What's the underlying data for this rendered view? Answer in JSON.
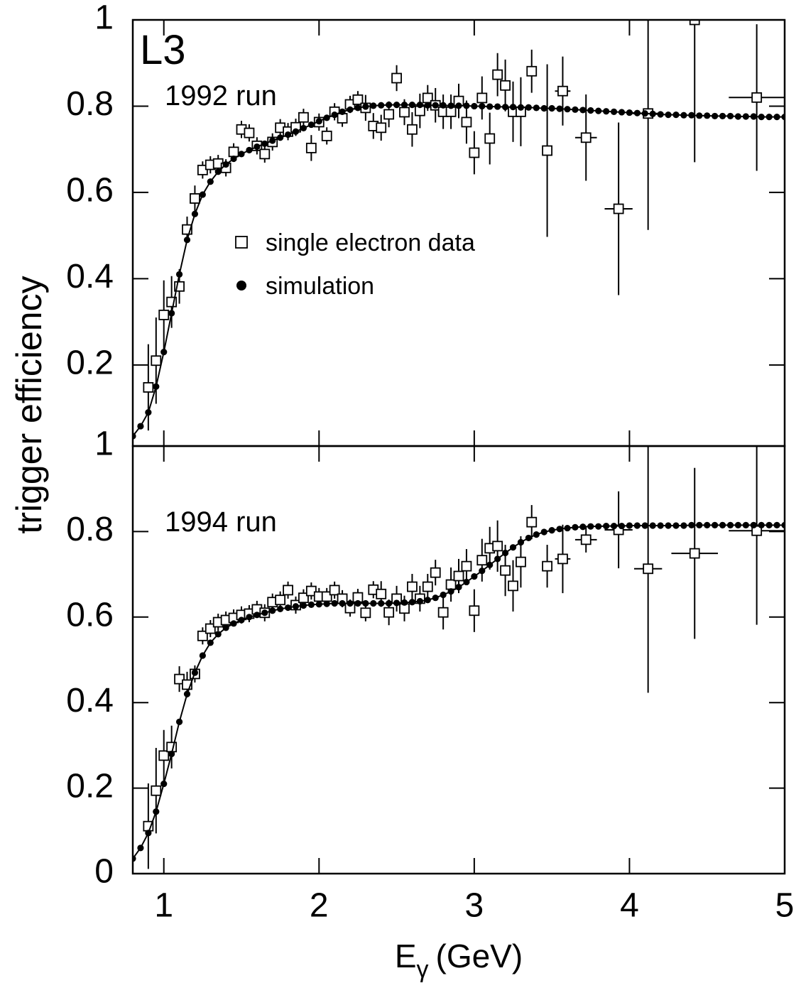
{
  "annotation": "L3",
  "ylabel": "trigger efficiency",
  "xlabel": {
    "symbol": "E",
    "subscript": "γ",
    "unit": "(GeV)"
  },
  "chart_data": [
    {
      "type": "scatter",
      "annotation": "1992 run",
      "xlim": [
        0.8,
        5
      ],
      "ylim": [
        0.012,
        1
      ],
      "xticks": [
        1,
        2,
        3,
        4,
        5
      ],
      "yticks": [
        0.2,
        0.4,
        0.6,
        0.8,
        1
      ],
      "series": [
        {
          "name": "single electron data",
          "marker": "square",
          "color": "#000000",
          "x": [
            0.9,
            0.95,
            1.0,
            1.05,
            1.1,
            1.15,
            1.2,
            1.25,
            1.3,
            1.35,
            1.4,
            1.45,
            1.5,
            1.55,
            1.6,
            1.65,
            1.7,
            1.75,
            1.8,
            1.85,
            1.9,
            1.95,
            2.0,
            2.05,
            2.1,
            2.15,
            2.2,
            2.25,
            2.3,
            2.35,
            2.4,
            2.45,
            2.5,
            2.55,
            2.6,
            2.65,
            2.7,
            2.75,
            2.8,
            2.85,
            2.9,
            2.95,
            3.0,
            3.05,
            3.1,
            3.15,
            3.2,
            3.25,
            3.3,
            3.37,
            3.47,
            3.57,
            3.72,
            3.93,
            4.12,
            4.42,
            4.82
          ],
          "values": [
            0.148,
            0.21,
            0.316,
            0.346,
            0.382,
            0.514,
            0.586,
            0.652,
            0.664,
            0.667,
            0.657,
            0.694,
            0.746,
            0.738,
            0.708,
            0.689,
            0.717,
            0.75,
            0.741,
            0.751,
            0.774,
            0.703,
            0.763,
            0.731,
            0.787,
            0.772,
            0.804,
            0.815,
            0.796,
            0.754,
            0.75,
            0.781,
            0.865,
            0.786,
            0.746,
            0.789,
            0.819,
            0.802,
            0.787,
            0.787,
            0.812,
            0.763,
            0.692,
            0.819,
            0.725,
            0.873,
            0.848,
            0.787,
            0.787,
            0.881,
            0.697,
            0.835,
            0.727,
            0.562,
            0.783,
            1.0,
            0.82
          ],
          "errors": [
            0.1,
            0.1,
            0.08,
            0.06,
            0.04,
            0.03,
            0.03,
            0.02,
            0.02,
            0.02,
            0.02,
            0.02,
            0.02,
            0.02,
            0.02,
            0.02,
            0.02,
            0.02,
            0.02,
            0.02,
            0.02,
            0.03,
            0.02,
            0.02,
            0.02,
            0.02,
            0.02,
            0.02,
            0.03,
            0.03,
            0.03,
            0.03,
            0.03,
            0.03,
            0.04,
            0.04,
            0.03,
            0.04,
            0.04,
            0.04,
            0.04,
            0.05,
            0.05,
            0.05,
            0.06,
            0.05,
            0.06,
            0.07,
            0.08,
            0.05,
            0.2,
            0.08,
            0.1,
            0.2,
            0.27,
            0.33,
            0.17
          ],
          "xerr": [
            0.025,
            0.025,
            0.025,
            0.025,
            0.025,
            0.025,
            0.025,
            0.025,
            0.025,
            0.025,
            0.025,
            0.025,
            0.025,
            0.025,
            0.025,
            0.025,
            0.025,
            0.025,
            0.025,
            0.025,
            0.025,
            0.025,
            0.025,
            0.025,
            0.025,
            0.025,
            0.025,
            0.025,
            0.025,
            0.025,
            0.025,
            0.025,
            0.025,
            0.025,
            0.025,
            0.025,
            0.025,
            0.025,
            0.025,
            0.025,
            0.025,
            0.025,
            0.025,
            0.025,
            0.025,
            0.025,
            0.025,
            0.025,
            0.025,
            0.025,
            0.025,
            0.05,
            0.07,
            0.09,
            0.1,
            0.1,
            0.18
          ]
        },
        {
          "name": "simulation",
          "marker": "dot",
          "line": true,
          "color": "#000000",
          "x": [
            0.8,
            0.85,
            0.9,
            0.95,
            1.0,
            1.05,
            1.1,
            1.15,
            1.2,
            1.25,
            1.3,
            1.35,
            1.4,
            1.45,
            1.5,
            1.55,
            1.6,
            1.65,
            1.7,
            1.75,
            1.8,
            1.85,
            1.9,
            1.95,
            2.0,
            2.05,
            2.1,
            2.15,
            2.2,
            2.25,
            2.3,
            2.35,
            2.4,
            2.45,
            2.5,
            2.55,
            2.6,
            2.65,
            2.7,
            2.75,
            2.8,
            2.85,
            2.9,
            2.95,
            3.0,
            3.05,
            3.1,
            3.15,
            3.2,
            3.25,
            3.3,
            3.35,
            3.4,
            3.45,
            3.5,
            3.55,
            3.6,
            3.65,
            3.7,
            3.75,
            3.8,
            3.85,
            3.9,
            3.95,
            4.0,
            4.05,
            4.1,
            4.15,
            4.2,
            4.25,
            4.3,
            4.35,
            4.4,
            4.45,
            4.5,
            4.55,
            4.6,
            4.65,
            4.7,
            4.75,
            4.8,
            4.85,
            4.9,
            4.95,
            5.0
          ],
          "values": [
            0.035,
            0.058,
            0.09,
            0.15,
            0.23,
            0.32,
            0.41,
            0.49,
            0.55,
            0.595,
            0.625,
            0.648,
            0.665,
            0.678,
            0.689,
            0.698,
            0.706,
            0.713,
            0.72,
            0.727,
            0.734,
            0.741,
            0.749,
            0.757,
            0.765,
            0.773,
            0.78,
            0.787,
            0.792,
            0.796,
            0.799,
            0.801,
            0.802,
            0.803,
            0.803,
            0.803,
            0.803,
            0.803,
            0.802,
            0.802,
            0.802,
            0.801,
            0.801,
            0.801,
            0.8,
            0.8,
            0.799,
            0.799,
            0.798,
            0.798,
            0.797,
            0.797,
            0.796,
            0.795,
            0.795,
            0.794,
            0.793,
            0.792,
            0.791,
            0.79,
            0.789,
            0.788,
            0.787,
            0.786,
            0.785,
            0.784,
            0.783,
            0.782,
            0.781,
            0.78,
            0.78,
            0.779,
            0.779,
            0.778,
            0.778,
            0.777,
            0.777,
            0.777,
            0.776,
            0.776,
            0.776,
            0.775,
            0.775,
            0.775,
            0.775
          ]
        }
      ]
    },
    {
      "type": "scatter",
      "annotation": "1994 run",
      "xlim": [
        0.8,
        5
      ],
      "ylim": [
        0,
        1
      ],
      "xticks": [
        1,
        2,
        3,
        4,
        5
      ],
      "yticks": [
        0,
        0.2,
        0.4,
        0.6,
        0.8,
        1
      ],
      "series": [
        {
          "marker": "square",
          "color": "#000000",
          "x": [
            0.9,
            0.95,
            1.0,
            1.05,
            1.1,
            1.15,
            1.2,
            1.25,
            1.3,
            1.35,
            1.4,
            1.45,
            1.5,
            1.55,
            1.6,
            1.65,
            1.7,
            1.75,
            1.8,
            1.85,
            1.9,
            1.95,
            2.0,
            2.05,
            2.1,
            2.15,
            2.2,
            2.25,
            2.3,
            2.35,
            2.4,
            2.45,
            2.5,
            2.55,
            2.6,
            2.65,
            2.7,
            2.75,
            2.8,
            2.85,
            2.9,
            2.95,
            3.0,
            3.05,
            3.1,
            3.15,
            3.2,
            3.25,
            3.3,
            3.37,
            3.47,
            3.57,
            3.72,
            3.93,
            4.12,
            4.42,
            4.82
          ],
          "values": [
            0.111,
            0.194,
            0.276,
            0.296,
            0.455,
            0.442,
            0.467,
            0.556,
            0.573,
            0.588,
            0.593,
            0.598,
            0.605,
            0.608,
            0.618,
            0.61,
            0.635,
            0.64,
            0.663,
            0.628,
            0.645,
            0.661,
            0.648,
            0.648,
            0.663,
            0.643,
            0.621,
            0.646,
            0.61,
            0.664,
            0.654,
            0.611,
            0.643,
            0.62,
            0.671,
            0.643,
            0.671,
            0.704,
            0.611,
            0.676,
            0.696,
            0.719,
            0.615,
            0.733,
            0.761,
            0.766,
            0.709,
            0.673,
            0.729,
            0.822,
            0.719,
            0.736,
            0.781,
            0.804,
            0.713,
            0.749,
            0.802
          ],
          "errors": [
            0.1,
            0.1,
            0.06,
            0.05,
            0.03,
            0.03,
            0.02,
            0.02,
            0.02,
            0.02,
            0.02,
            0.02,
            0.02,
            0.02,
            0.02,
            0.02,
            0.02,
            0.02,
            0.02,
            0.02,
            0.02,
            0.02,
            0.02,
            0.02,
            0.02,
            0.02,
            0.02,
            0.02,
            0.02,
            0.02,
            0.03,
            0.03,
            0.03,
            0.03,
            0.03,
            0.03,
            0.03,
            0.03,
            0.04,
            0.04,
            0.04,
            0.04,
            0.05,
            0.05,
            0.05,
            0.06,
            0.06,
            0.06,
            0.06,
            0.04,
            0.05,
            0.08,
            0.03,
            0.09,
            0.29,
            0.2,
            0.22
          ],
          "xerr": [
            0.025,
            0.025,
            0.025,
            0.025,
            0.025,
            0.025,
            0.025,
            0.025,
            0.025,
            0.025,
            0.025,
            0.025,
            0.025,
            0.025,
            0.025,
            0.025,
            0.025,
            0.025,
            0.025,
            0.025,
            0.025,
            0.025,
            0.025,
            0.025,
            0.025,
            0.025,
            0.025,
            0.025,
            0.025,
            0.025,
            0.025,
            0.025,
            0.025,
            0.025,
            0.025,
            0.025,
            0.025,
            0.025,
            0.025,
            0.025,
            0.025,
            0.025,
            0.025,
            0.025,
            0.025,
            0.025,
            0.025,
            0.025,
            0.025,
            0.025,
            0.025,
            0.05,
            0.07,
            0.09,
            0.09,
            0.15,
            0.18
          ]
        },
        {
          "marker": "dot",
          "line": true,
          "color": "#000000",
          "x": [
            0.8,
            0.85,
            0.9,
            0.95,
            1.0,
            1.05,
            1.1,
            1.15,
            1.2,
            1.25,
            1.3,
            1.35,
            1.4,
            1.45,
            1.5,
            1.55,
            1.6,
            1.65,
            1.7,
            1.75,
            1.8,
            1.85,
            1.9,
            1.95,
            2.0,
            2.05,
            2.1,
            2.15,
            2.2,
            2.25,
            2.3,
            2.35,
            2.4,
            2.45,
            2.5,
            2.55,
            2.6,
            2.65,
            2.7,
            2.75,
            2.8,
            2.85,
            2.9,
            2.95,
            3.0,
            3.05,
            3.1,
            3.15,
            3.2,
            3.25,
            3.3,
            3.35,
            3.4,
            3.45,
            3.5,
            3.55,
            3.6,
            3.65,
            3.7,
            3.75,
            3.8,
            3.85,
            3.9,
            3.95,
            4.0,
            4.05,
            4.1,
            4.15,
            4.2,
            4.25,
            4.3,
            4.35,
            4.4,
            4.45,
            4.5,
            4.55,
            4.6,
            4.65,
            4.7,
            4.75,
            4.8,
            4.85,
            4.9,
            4.95,
            5.0
          ],
          "values": [
            0.035,
            0.06,
            0.095,
            0.145,
            0.21,
            0.28,
            0.355,
            0.42,
            0.47,
            0.51,
            0.54,
            0.56,
            0.575,
            0.585,
            0.593,
            0.6,
            0.605,
            0.61,
            0.615,
            0.619,
            0.622,
            0.625,
            0.627,
            0.629,
            0.63,
            0.631,
            0.632,
            0.632,
            0.632,
            0.632,
            0.632,
            0.632,
            0.632,
            0.632,
            0.633,
            0.634,
            0.635,
            0.637,
            0.64,
            0.645,
            0.652,
            0.66,
            0.67,
            0.682,
            0.695,
            0.708,
            0.722,
            0.736,
            0.75,
            0.763,
            0.775,
            0.785,
            0.793,
            0.799,
            0.803,
            0.806,
            0.808,
            0.81,
            0.811,
            0.812,
            0.812,
            0.813,
            0.813,
            0.813,
            0.814,
            0.814,
            0.814,
            0.814,
            0.814,
            0.814,
            0.814,
            0.814,
            0.815,
            0.815,
            0.815,
            0.815,
            0.815,
            0.815,
            0.815,
            0.815,
            0.815,
            0.815,
            0.815,
            0.815,
            0.815
          ]
        }
      ]
    }
  ]
}
